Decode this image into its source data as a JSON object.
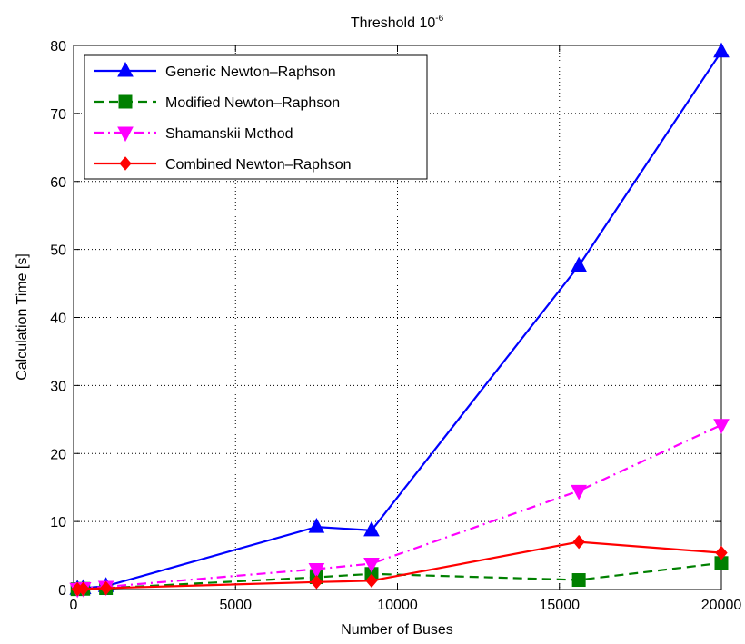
{
  "chart_data": {
    "type": "line",
    "title": "Threshold 10",
    "title_sup": "-6",
    "xlabel": "Number of Buses",
    "ylabel": "Calculation Time [s]",
    "xlim": [
      0,
      20000
    ],
    "ylim": [
      0,
      80
    ],
    "xticks": [
      0,
      5000,
      10000,
      15000,
      20000
    ],
    "yticks": [
      0,
      10,
      20,
      30,
      40,
      50,
      60,
      70,
      80
    ],
    "grid": true,
    "legend_position": "top-left",
    "series": [
      {
        "name": "Generic Newton–Raphson",
        "color": "#0000ff",
        "linestyle": "solid",
        "marker": "triangle-up",
        "x": [
          118,
          300,
          1000,
          7500,
          9200,
          15600,
          20000
        ],
        "y": [
          0.1,
          0.2,
          0.5,
          9.2,
          8.7,
          47.6,
          79.1
        ]
      },
      {
        "name": "Modified Newton–Raphson",
        "color": "#008000",
        "linestyle": "dashed",
        "marker": "square",
        "x": [
          118,
          300,
          1000,
          7500,
          9200,
          15600,
          20000
        ],
        "y": [
          0.05,
          0.1,
          0.2,
          1.8,
          2.3,
          1.4,
          3.9
        ]
      },
      {
        "name": "Shamanskii Method",
        "color": "#ff00ff",
        "linestyle": "dashdot",
        "marker": "triangle-down",
        "x": [
          118,
          300,
          1000,
          7500,
          9200,
          15600,
          20000
        ],
        "y": [
          0.1,
          0.2,
          0.4,
          3.0,
          3.8,
          14.5,
          24.2
        ]
      },
      {
        "name": "Combined Newton–Raphson",
        "color": "#ff0000",
        "linestyle": "solid",
        "marker": "diamond",
        "x": [
          118,
          300,
          1000,
          7500,
          9200,
          15600,
          20000
        ],
        "y": [
          0.05,
          0.1,
          0.2,
          1.1,
          1.3,
          7.0,
          5.4
        ]
      }
    ]
  }
}
